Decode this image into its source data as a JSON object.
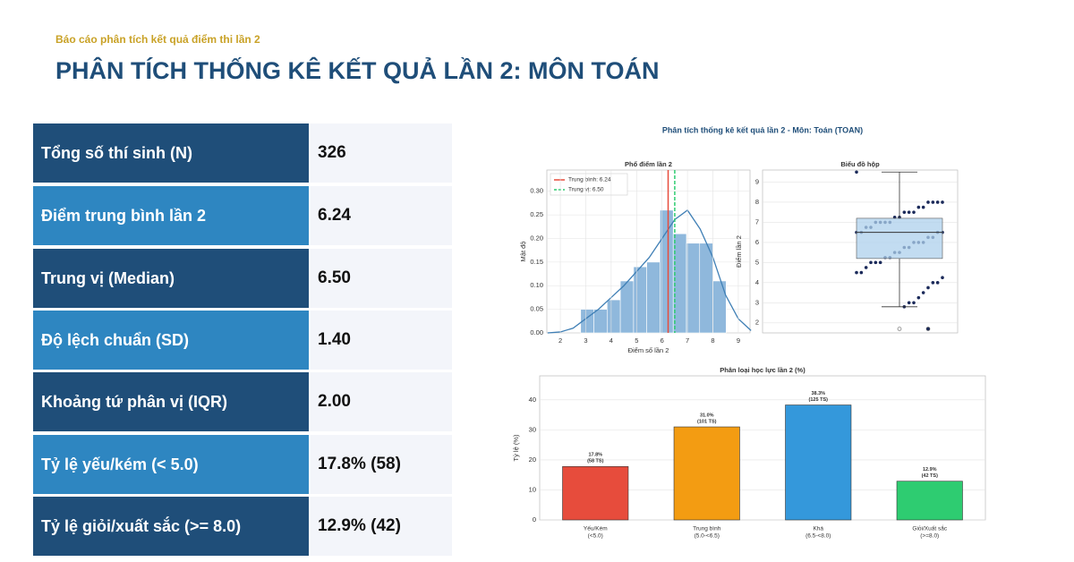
{
  "header": {
    "subtitle": "Báo cáo phân tích kết quả điểm thi lần 2",
    "title": "PHÂN TÍCH THỐNG KÊ KẾT QUẢ LẦN 2: MÔN TOÁN"
  },
  "table": {
    "rows": [
      [
        "Tổng số thí sinh (N)",
        "326"
      ],
      [
        "Điểm trung bình lần 2",
        "6.24"
      ],
      [
        "Trung vị (Median)",
        "6.50"
      ],
      [
        "Độ lệch chuẩn (SD)",
        "1.40"
      ],
      [
        "Khoảng tứ phân vị (IQR)",
        "2.00"
      ],
      [
        "Tỷ lệ yếu/kém (< 5.0)",
        "17.8% (58)"
      ],
      [
        "Tỷ lệ giỏi/xuất sắc (>= 8.0)",
        "12.9% (42)"
      ]
    ]
  },
  "figure_title": "Phân tích thống kê kết quả lần 2 - Môn: Toán (TOAN)",
  "chart_data": [
    {
      "type": "histogram",
      "title": "Phổ điểm lần 2",
      "x_label": "Điểm số lần 2",
      "y_label": "Mật độ",
      "bins": [
        2.8,
        3.32,
        3.84,
        4.36,
        4.88,
        5.4,
        5.92,
        6.44,
        6.96,
        7.48,
        8.0,
        8.52
      ],
      "counts": [
        0.05,
        0.05,
        0.07,
        0.11,
        0.14,
        0.15,
        0.26,
        0.21,
        0.19,
        0.19,
        0.11
      ],
      "color": "#8fb8dc",
      "kde": {
        "x": [
          1.5,
          2,
          2.5,
          3,
          3.5,
          4,
          4.5,
          5,
          5.5,
          6,
          6.5,
          7,
          7.5,
          8,
          8.5,
          9,
          9.5
        ],
        "values": [
          0,
          0.002,
          0.01,
          0.03,
          0.05,
          0.075,
          0.1,
          0.13,
          0.16,
          0.2,
          0.24,
          0.26,
          0.22,
          0.16,
          0.08,
          0.03,
          0.005
        ],
        "color": "#3f7fb5"
      },
      "mean": 6.24,
      "median": 6.5,
      "mean_color": "#e74c3c",
      "median_color": "#2ecc71",
      "legend": [
        "Trung bình: 6.24",
        "Trung vị: 6.50"
      ],
      "xlim": [
        1.47,
        9.46
      ],
      "xticks": [
        2,
        3,
        4,
        5,
        6,
        7,
        8,
        9
      ],
      "ylim": [
        0,
        0.345
      ],
      "yticks": [
        {
          "value": 0,
          "label": "0.00"
        },
        {
          "value": 0.05,
          "label": "0.05"
        },
        {
          "value": 0.1,
          "label": "0.10"
        },
        {
          "value": 0.15,
          "label": "0.15"
        },
        {
          "value": 0.2,
          "label": "0.20"
        },
        {
          "value": 0.25,
          "label": "0.25"
        },
        {
          "value": 0.3,
          "label": "0.30"
        }
      ],
      "grid": true
    },
    {
      "type": "box",
      "title": "Biểu đồ hộp",
      "y_label": "Điểm lần 2",
      "whisker_low": 2.8,
      "q1": 5.2,
      "median": 6.5,
      "q3": 7.2,
      "whisker_high": 9.5,
      "outliers": [
        1.7,
        1.7
      ],
      "points": [
        9.5,
        8,
        8,
        8,
        8,
        7.75,
        7.75,
        7.5,
        7.5,
        7.5,
        7.25,
        7.25,
        7,
        7,
        7,
        7,
        6.75,
        6.75,
        6.5,
        6.5,
        6.5,
        6.5,
        6.25,
        6.25,
        6,
        6,
        6,
        5.75,
        5.75,
        5.5,
        5.5,
        5.25,
        5.25,
        5,
        5,
        5,
        4.75,
        4.5,
        4.5,
        4.25,
        4,
        4,
        3.75,
        3.5,
        3.25,
        3,
        3,
        2.8
      ],
      "color": "#aed0ec",
      "point_color": "#1b2a5a",
      "ylim": [
        1.5,
        9.6
      ],
      "yticks": [
        2,
        3,
        4,
        5,
        6,
        7,
        8,
        9
      ],
      "grid": true
    },
    {
      "type": "bar",
      "title": "Phân loại học lực lần 2 (%)",
      "y_label": "Tỷ lệ (%)",
      "categories": [
        "Yếu/Kém",
        "Trung bình",
        "Khá",
        "Giỏi/Xuất sắc"
      ],
      "category_ranges": [
        "(<5.0)",
        "(5.0-<6.5)",
        "(6.5-<8.0)",
        "(>=8.0)"
      ],
      "values": [
        17.8,
        31.0,
        38.3,
        12.9
      ],
      "value_labels": [
        "17.8%",
        "31.0%",
        "38.3%",
        "12.9%"
      ],
      "count_labels": [
        "(58 TS)",
        "(101 TS)",
        "(125 TS)",
        "(42 TS)"
      ],
      "colors": [
        "#e74c3c",
        "#f39c12",
        "#3498db",
        "#2ecc71"
      ],
      "ylim": [
        0,
        48
      ],
      "yticks": [
        0,
        10,
        20,
        30,
        40
      ],
      "grid": true
    }
  ]
}
